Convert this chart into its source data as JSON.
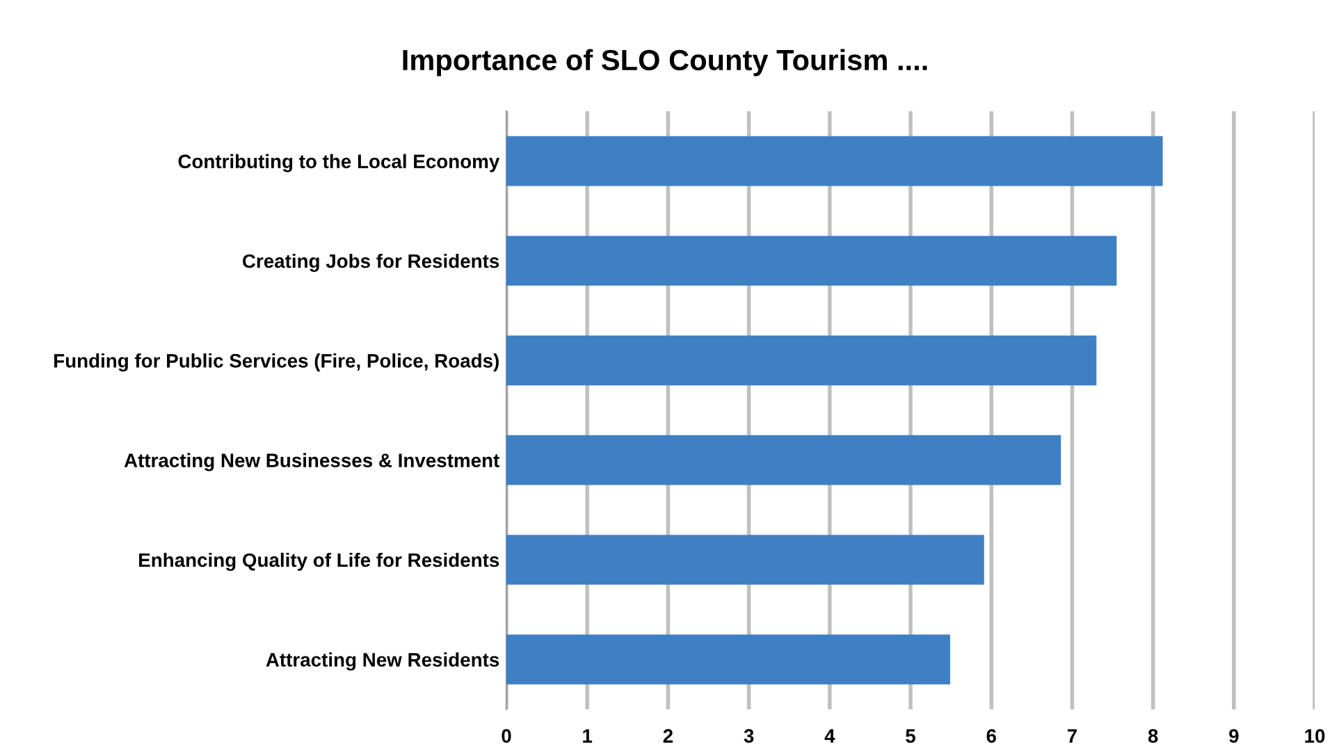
{
  "chart_data": {
    "type": "bar",
    "orientation": "horizontal",
    "title": "Importance of SLO County Tourism ....",
    "categories": [
      "Contributing to the Local Economy",
      "Creating Jobs for Residents",
      "Funding for Public Services (Fire, Police, Roads)",
      "Attracting New Businesses & Investment",
      "Enhancing Quality of Life for Residents",
      "Attracting New Residents"
    ],
    "values": [
      8.12,
      7.55,
      7.3,
      6.86,
      5.91,
      5.49
    ],
    "color": "#3f80c4",
    "xlim": [
      0,
      10
    ],
    "xticks": [
      0,
      1,
      2,
      3,
      4,
      5,
      6,
      7,
      8,
      9,
      10
    ],
    "grid": "x"
  }
}
